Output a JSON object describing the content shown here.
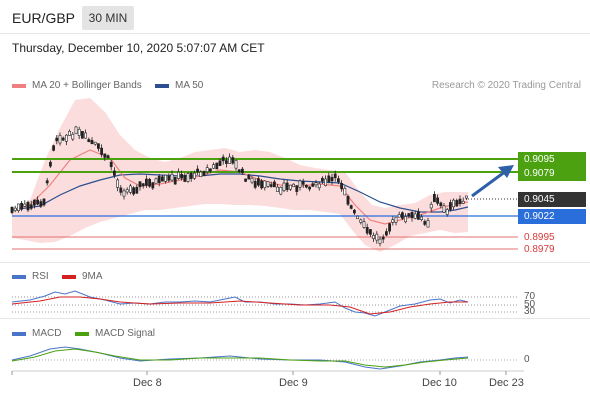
{
  "header": {
    "pair": "EUR/GBP",
    "timeframe": "30 MIN"
  },
  "datetime": "Thursday, December 10, 2020 5:07:07 AM CET",
  "legend": {
    "ma20": "MA 20 + Bollinger Bands",
    "ma50": "MA 50",
    "rsi": "RSI",
    "rsi_ma": "9MA",
    "macd": "MACD",
    "macd_signal": "MACD Signal"
  },
  "copyright": "Research © 2020 Trading Central",
  "colors": {
    "green": "#4ba10f",
    "blue": "#2a6edb",
    "red": "#d83a3a",
    "ma20": "#f08080",
    "ma50": "#2c4f8f",
    "band": "#fbd7d7"
  },
  "price_levels": [
    {
      "label": "0.9095",
      "style": "green"
    },
    {
      "label": "0.9079",
      "style": "green"
    },
    {
      "label": "0.9045",
      "style": "dark"
    },
    {
      "label": "0.9022",
      "style": "blue"
    },
    {
      "label": "0.8995",
      "style": "red"
    },
    {
      "label": "0.8979",
      "style": "red"
    }
  ],
  "rsi_ticks": [
    "70",
    "50",
    "30"
  ],
  "macd_tick": "0",
  "x_labels": [
    "Dec 8",
    "Dec 9",
    "Dec 10",
    "Dec 23"
  ]
}
